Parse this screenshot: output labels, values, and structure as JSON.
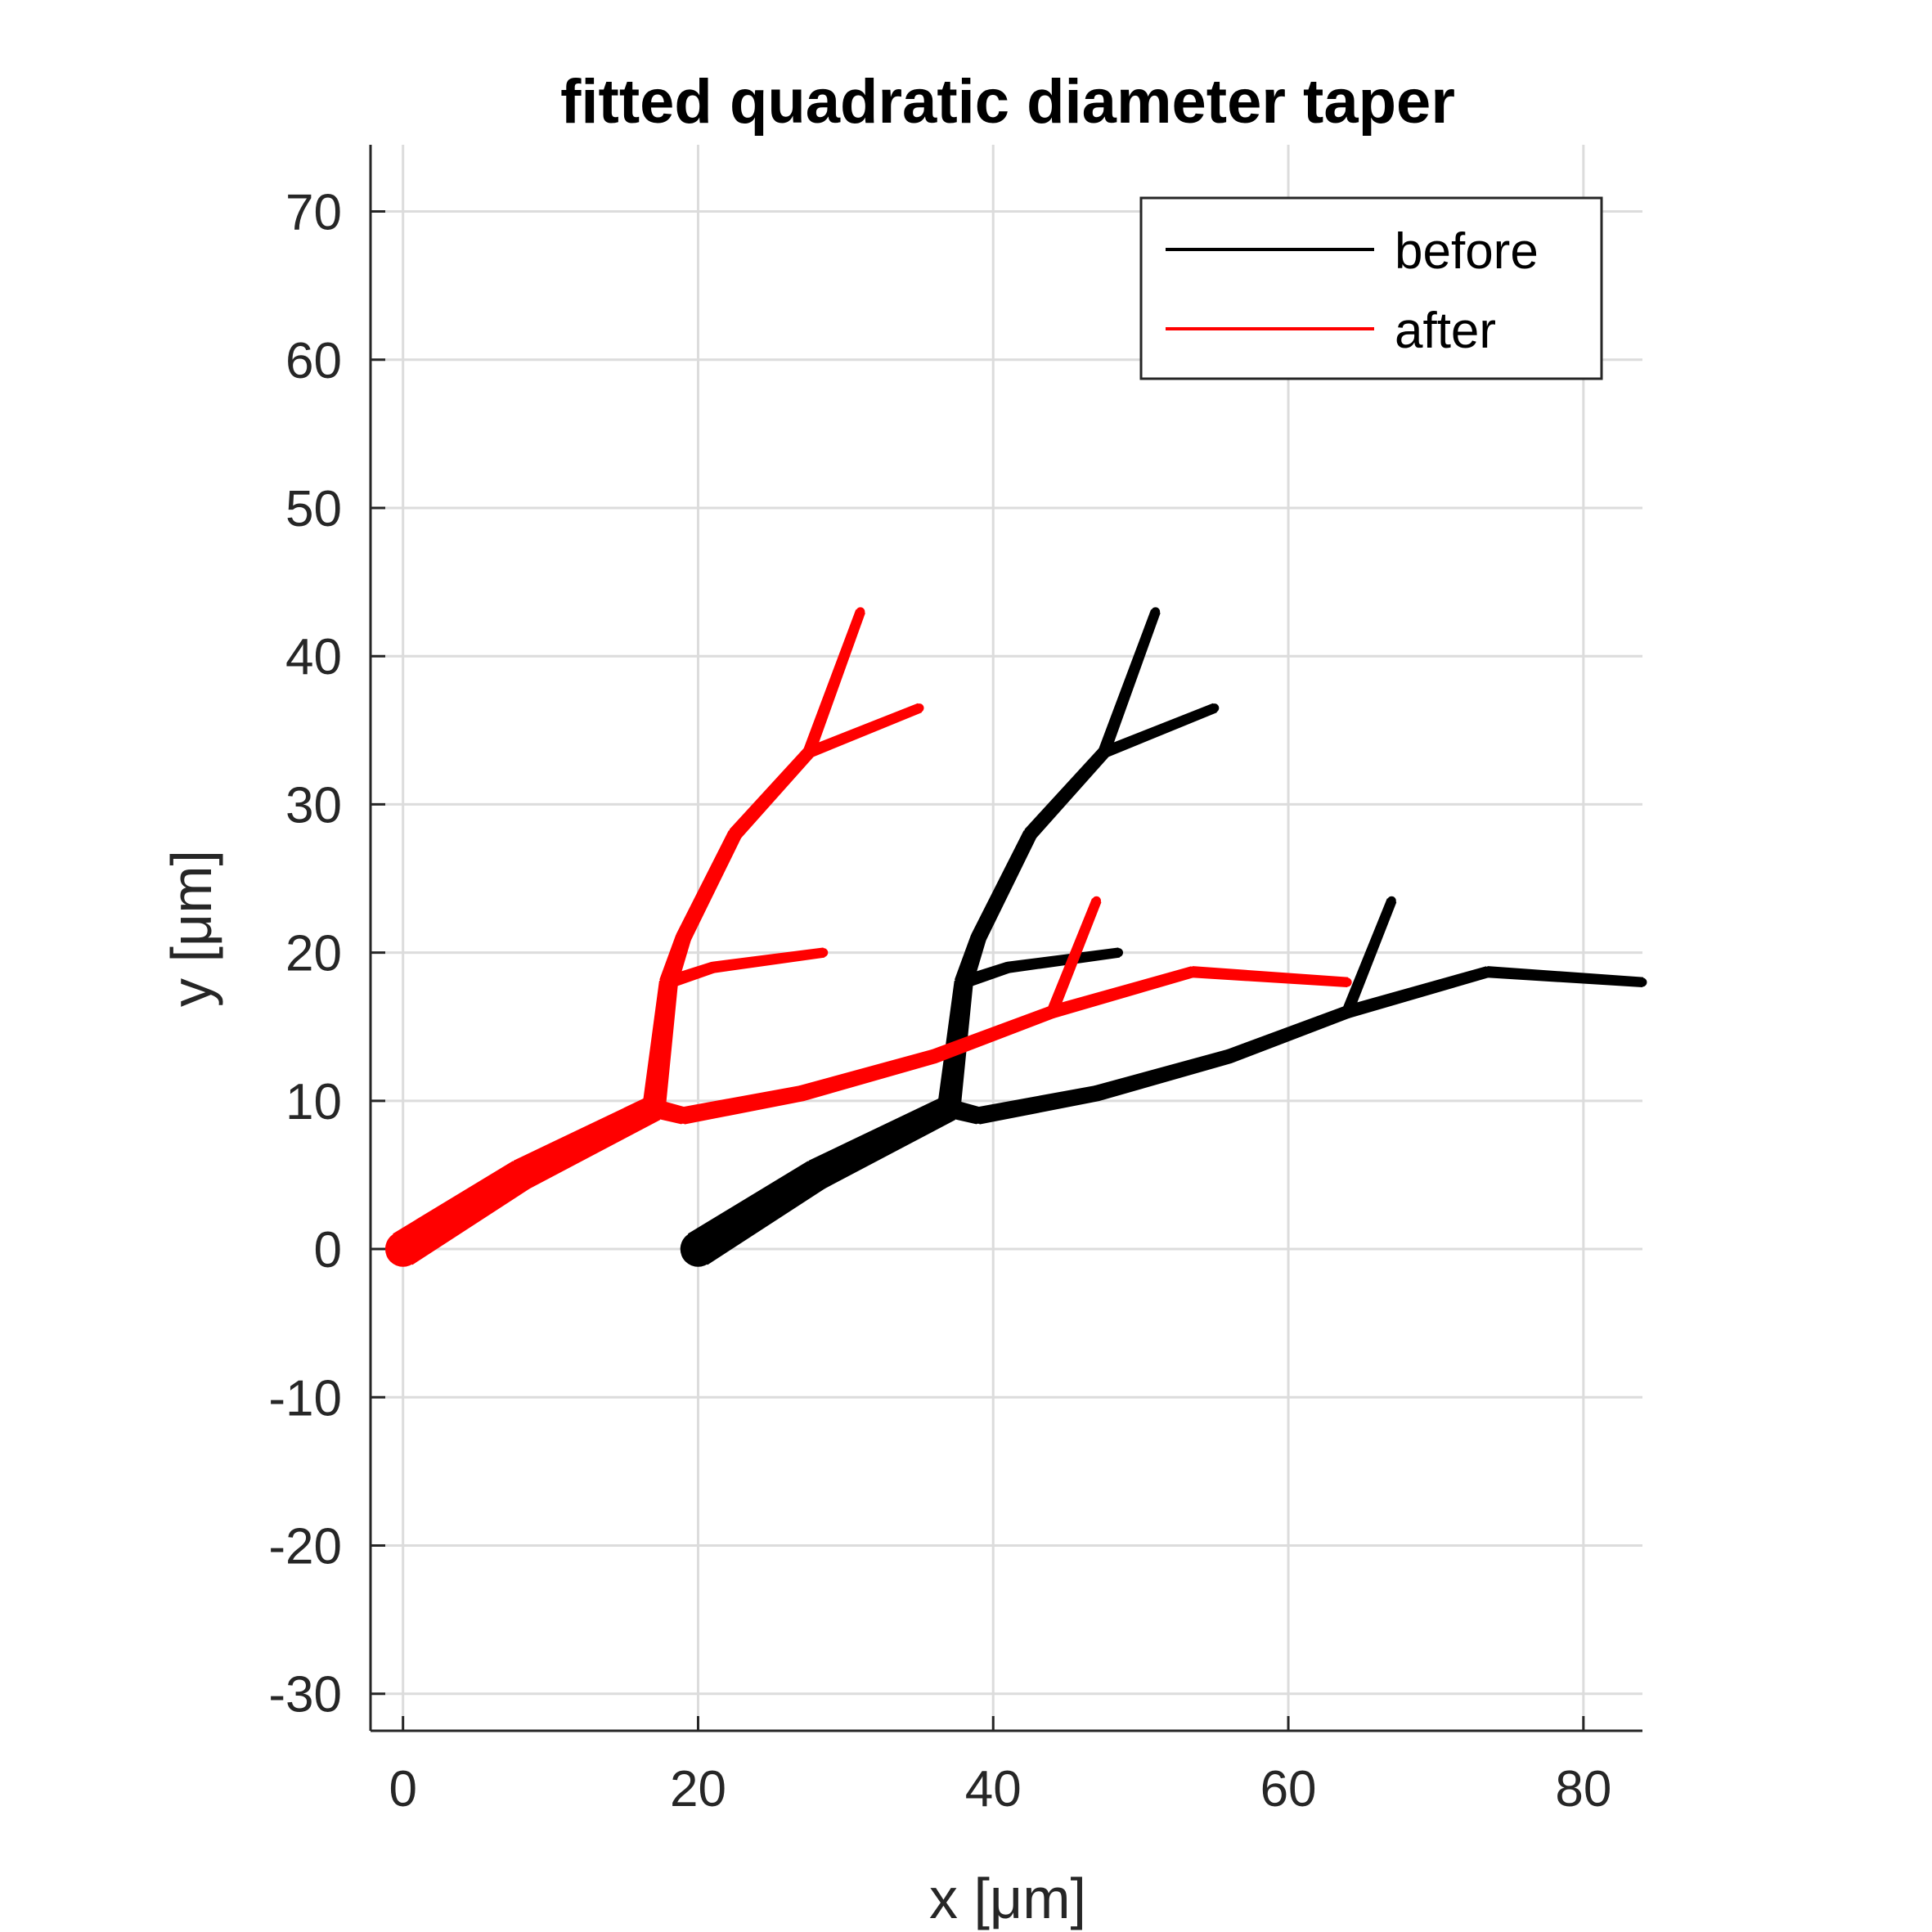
{
  "chart_data": {
    "type": "line",
    "title": "fitted quadratic diameter taper",
    "xlabel": "x [μm]",
    "ylabel": "y [μm]",
    "xlim": [
      -2.2,
      84
    ],
    "ylim": [
      -32.5,
      74.5
    ],
    "xticks": [
      0,
      20,
      40,
      60,
      80
    ],
    "yticks": [
      -30,
      -20,
      -10,
      0,
      10,
      20,
      30,
      40,
      50,
      60,
      70
    ],
    "grid": true,
    "legend": {
      "position": "top-right",
      "entries": [
        "before",
        "after"
      ]
    },
    "colors": {
      "before": "#000000",
      "after": "#ff0000",
      "grid": "#dcdcdc",
      "axis": "#262626"
    },
    "series": [
      {
        "name": "before",
        "x_offset": 20,
        "branches": [
          {
            "points": [
              [
                20,
                0
              ],
              [
                28,
                5
              ],
              [
                37,
                9.5
              ]
            ],
            "widths": [
              2.4,
              2.1,
              1.7
            ]
          },
          {
            "points": [
              [
                37,
                9.5
              ],
              [
                38,
                18
              ],
              [
                39,
                21
              ],
              [
                42.5,
                28
              ],
              [
                47.5,
                33.5
              ]
            ],
            "widths": [
              1.5,
              1.2,
              1.0,
              0.9,
              0.8
            ]
          },
          {
            "points": [
              [
                47.5,
                33.5
              ],
              [
                51,
                43
              ]
            ],
            "widths": [
              0.75,
              0.6
            ]
          },
          {
            "points": [
              [
                47.5,
                33.5
              ],
              [
                55,
                36.5
              ]
            ],
            "widths": [
              0.7,
              0.6
            ]
          },
          {
            "points": [
              [
                38,
                18
              ],
              [
                41,
                19
              ],
              [
                48.5,
                20
              ]
            ],
            "widths": [
              0.8,
              0.7,
              0.6
            ]
          },
          {
            "points": [
              [
                37,
                9.5
              ],
              [
                39,
                9
              ],
              [
                47,
                10.5
              ],
              [
                56,
                13
              ],
              [
                64,
                16
              ]
            ],
            "widths": [
              1.2,
              1.1,
              1.0,
              0.9,
              0.8
            ]
          },
          {
            "points": [
              [
                64,
                16
              ],
              [
                67,
                23.5
              ]
            ],
            "widths": [
              0.7,
              0.6
            ]
          },
          {
            "points": [
              [
                64,
                16
              ],
              [
                73.5,
                18.7
              ],
              [
                84,
                18
              ]
            ],
            "widths": [
              0.8,
              0.7,
              0.6
            ]
          }
        ]
      },
      {
        "name": "after",
        "x_offset": 0,
        "branches": [
          {
            "points": [
              [
                0,
                0
              ],
              [
                8,
                5
              ],
              [
                17,
                9.5
              ]
            ],
            "widths": [
              2.4,
              2.1,
              1.7
            ]
          },
          {
            "points": [
              [
                17,
                9.5
              ],
              [
                18,
                18
              ],
              [
                19,
                21
              ],
              [
                22.5,
                28
              ],
              [
                27.5,
                33.5
              ]
            ],
            "widths": [
              1.5,
              1.2,
              1.0,
              0.9,
              0.8
            ]
          },
          {
            "points": [
              [
                27.5,
                33.5
              ],
              [
                31,
                43
              ]
            ],
            "widths": [
              0.75,
              0.6
            ]
          },
          {
            "points": [
              [
                27.5,
                33.5
              ],
              [
                35,
                36.5
              ]
            ],
            "widths": [
              0.7,
              0.6
            ]
          },
          {
            "points": [
              [
                18,
                18
              ],
              [
                21,
                19
              ],
              [
                28.5,
                20
              ]
            ],
            "widths": [
              0.8,
              0.7,
              0.6
            ]
          },
          {
            "points": [
              [
                17,
                9.5
              ],
              [
                19,
                9
              ],
              [
                27,
                10.5
              ],
              [
                36,
                13
              ],
              [
                44,
                16
              ]
            ],
            "widths": [
              1.2,
              1.1,
              1.0,
              0.9,
              0.8
            ]
          },
          {
            "points": [
              [
                44,
                16
              ],
              [
                47,
                23.5
              ]
            ],
            "widths": [
              0.7,
              0.6
            ]
          },
          {
            "points": [
              [
                44,
                16
              ],
              [
                53.5,
                18.7
              ],
              [
                64,
                18
              ]
            ],
            "widths": [
              0.8,
              0.7,
              0.6
            ]
          }
        ]
      }
    ]
  }
}
